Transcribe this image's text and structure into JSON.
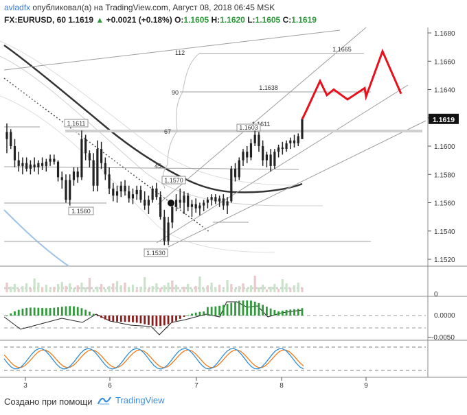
{
  "header": {
    "author": "avladfx",
    "published": "опубликовал(а) на TradingView.com, Август 08, 2018 06:45 MSK",
    "symbol": "FX:EURUSD, 60",
    "price": "1.1619",
    "change": "+0.0021 (+0.18%)",
    "o_label": "O:",
    "o": "1.1605",
    "h_label": "H:",
    "h": "1.1620",
    "l_label": "L:",
    "l": "1.1605",
    "c_label": "C:",
    "c": "1.1619",
    "up_icon": "triangle-up-icon"
  },
  "footer": {
    "created": "Создано при помощи",
    "brand": "TradingView",
    "brand_icon": "tradingview-logo-icon"
  },
  "colors": {
    "candle": "#222222",
    "forecast": "#e8101b",
    "price_badge": "#111111",
    "hist_pos": "#2e9a3a",
    "hist_neg": "#8b1a1a",
    "stoch_k": "#2e8ed8",
    "stoch_d": "#f07a1a",
    "channel": "#9e9e9e",
    "ma_dark": "#333333",
    "ma_blue": "#9ec3e6"
  },
  "chart_data": {
    "type": "candlestick",
    "symbol": "EURUSD",
    "timeframe": "60",
    "ylim": [
      1.1515,
      1.1688
    ],
    "y_ticks": [
      "1.1680",
      "1.1660",
      "1.1640",
      "1.1620",
      "1.1600",
      "1.1580",
      "1.1560",
      "1.1540",
      "1.1520"
    ],
    "x_ticks": [
      "3",
      "6",
      "7",
      "8",
      "9"
    ],
    "current_price": "1.1619",
    "candles": [
      [
        1.1605,
        1.1616,
        1.1595,
        1.161
      ],
      [
        1.161,
        1.1612,
        1.1598,
        1.16
      ],
      [
        1.16,
        1.1605,
        1.1585,
        1.159
      ],
      [
        1.159,
        1.1596,
        1.1582,
        1.1586
      ],
      [
        1.1586,
        1.1592,
        1.158,
        1.1588
      ],
      [
        1.1588,
        1.1592,
        1.1582,
        1.1584
      ],
      [
        1.1584,
        1.159,
        1.158,
        1.1587
      ],
      [
        1.1587,
        1.1592,
        1.1582,
        1.1585
      ],
      [
        1.1585,
        1.159,
        1.158,
        1.1588
      ],
      [
        1.1588,
        1.1592,
        1.1583,
        1.1586
      ],
      [
        1.1586,
        1.1591,
        1.1582,
        1.1589
      ],
      [
        1.1589,
        1.1594,
        1.1586,
        1.1591
      ],
      [
        1.1591,
        1.1594,
        1.1587,
        1.1589
      ],
      [
        1.1589,
        1.159,
        1.1575,
        1.1578
      ],
      [
        1.1578,
        1.1582,
        1.157,
        1.1576
      ],
      [
        1.1576,
        1.158,
        1.156,
        1.1562
      ],
      [
        1.1562,
        1.158,
        1.1558,
        1.1576
      ],
      [
        1.1576,
        1.1585,
        1.1572,
        1.1582
      ],
      [
        1.1582,
        1.1585,
        1.1574,
        1.1578
      ],
      [
        1.1578,
        1.1611,
        1.1576,
        1.1605
      ],
      [
        1.1605,
        1.1608,
        1.159,
        1.1595
      ],
      [
        1.1595,
        1.1597,
        1.1585,
        1.159
      ],
      [
        1.159,
        1.1595,
        1.1568,
        1.1572
      ],
      [
        1.1572,
        1.1604,
        1.1568,
        1.1598
      ],
      [
        1.1598,
        1.1603,
        1.1584,
        1.1588
      ],
      [
        1.1588,
        1.1592,
        1.1576,
        1.158
      ],
      [
        1.158,
        1.1585,
        1.1566,
        1.157
      ],
      [
        1.157,
        1.1574,
        1.1561,
        1.1565
      ],
      [
        1.1565,
        1.1572,
        1.156,
        1.1568
      ],
      [
        1.1568,
        1.1575,
        1.1564,
        1.1572
      ],
      [
        1.1572,
        1.1576,
        1.1565,
        1.1568
      ],
      [
        1.1568,
        1.1572,
        1.156,
        1.1563
      ],
      [
        1.1563,
        1.157,
        1.1559,
        1.1566
      ],
      [
        1.1566,
        1.1572,
        1.1562,
        1.1569
      ],
      [
        1.1569,
        1.1572,
        1.156,
        1.1562
      ],
      [
        1.1562,
        1.1568,
        1.1555,
        1.1558
      ],
      [
        1.1558,
        1.1565,
        1.1552,
        1.1562
      ],
      [
        1.1562,
        1.1572,
        1.156,
        1.157
      ],
      [
        1.157,
        1.1574,
        1.1562,
        1.1564
      ],
      [
        1.1564,
        1.1568,
        1.1548,
        1.155
      ],
      [
        1.155,
        1.1555,
        1.153,
        1.1533
      ],
      [
        1.1533,
        1.155,
        1.153,
        1.1546
      ],
      [
        1.1546,
        1.156,
        1.1542,
        1.1557
      ],
      [
        1.1557,
        1.1566,
        1.1554,
        1.1562
      ],
      [
        1.1562,
        1.157,
        1.1556,
        1.156
      ],
      [
        1.156,
        1.1568,
        1.1552,
        1.1565
      ],
      [
        1.1565,
        1.1567,
        1.1554,
        1.1557
      ],
      [
        1.1557,
        1.1562,
        1.155,
        1.1559
      ],
      [
        1.1559,
        1.1563,
        1.1553,
        1.1556
      ],
      [
        1.1556,
        1.156,
        1.1551,
        1.1558
      ],
      [
        1.1558,
        1.1562,
        1.1554,
        1.156
      ],
      [
        1.156,
        1.1564,
        1.1556,
        1.1562
      ],
      [
        1.1562,
        1.1566,
        1.1558,
        1.1564
      ],
      [
        1.1564,
        1.1566,
        1.1559,
        1.1561
      ],
      [
        1.1561,
        1.1565,
        1.1557,
        1.1563
      ],
      [
        1.1563,
        1.1566,
        1.1555,
        1.1558
      ],
      [
        1.1558,
        1.1564,
        1.1552,
        1.1561
      ],
      [
        1.1561,
        1.1586,
        1.156,
        1.1584
      ],
      [
        1.1584,
        1.1588,
        1.1575,
        1.1578
      ],
      [
        1.1578,
        1.1592,
        1.1576,
        1.159
      ],
      [
        1.159,
        1.1598,
        1.1586,
        1.1596
      ],
      [
        1.1596,
        1.16,
        1.1588,
        1.1592
      ],
      [
        1.1592,
        1.1605,
        1.159,
        1.1602
      ],
      [
        1.1602,
        1.1611,
        1.16,
        1.1608
      ],
      [
        1.1608,
        1.161,
        1.1596,
        1.16
      ],
      [
        1.16,
        1.1604,
        1.1586,
        1.159
      ],
      [
        1.159,
        1.1596,
        1.1585,
        1.1594
      ],
      [
        1.1594,
        1.1598,
        1.1582,
        1.1586
      ],
      [
        1.1586,
        1.1598,
        1.1584,
        1.1596
      ],
      [
        1.1596,
        1.1601,
        1.1592,
        1.1599
      ],
      [
        1.1599,
        1.1603,
        1.1594,
        1.1598
      ],
      [
        1.1598,
        1.1604,
        1.1596,
        1.1602
      ],
      [
        1.1602,
        1.1606,
        1.1598,
        1.1604
      ],
      [
        1.1604,
        1.1608,
        1.1599,
        1.1602
      ],
      [
        1.1602,
        1.1609,
        1.16,
        1.1607
      ],
      [
        1.1605,
        1.162,
        1.1605,
        1.1619
      ]
    ],
    "forecast_path": [
      1.1619,
      1.1625,
      1.1646,
      1.1636,
      1.164,
      1.1633,
      1.1641,
      1.1635,
      1.1667,
      1.1637
    ],
    "annotations": {
      "price_labels": [
        "1.1611",
        "1.1570",
        "1.1560",
        "1.1530",
        "1.1611",
        "1.1603",
        "1.1638",
        "1.1665"
      ],
      "fib_labels": [
        "112",
        "90",
        "67",
        "45"
      ]
    },
    "panels": {
      "volume": {
        "visible_tick": "0"
      },
      "macd": {
        "y_ticks": [
          "0.0000",
          "-0.0050"
        ]
      },
      "stochastic": {
        "series": [
          {
            "name": "",
            "color_key": "stoch_k"
          },
          {
            "name": "",
            "color_key": "stoch_d"
          }
        ]
      }
    }
  }
}
